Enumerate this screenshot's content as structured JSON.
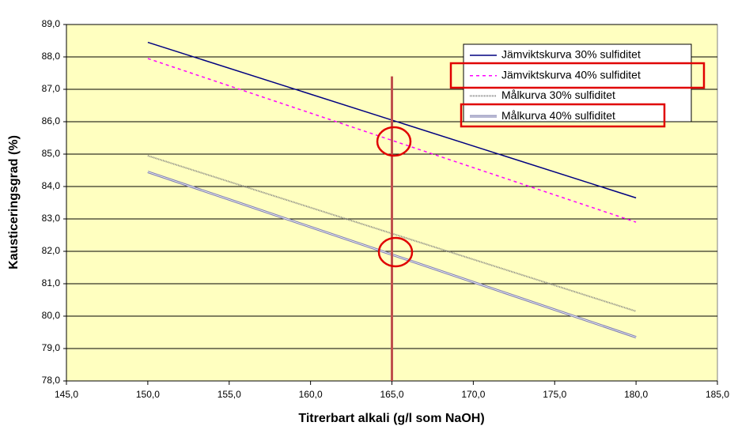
{
  "chart_data": {
    "type": "line",
    "x_label": "Titrerbart alkali (g/l som NaOH)",
    "y_label": "Kausticeringsgrad (%)",
    "x": [
      150,
      180
    ],
    "series": [
      {
        "name": "Jämviktskurva 30% sulfiditet",
        "color": "#000080",
        "style": "solid",
        "values": [
          88.45,
          83.65
        ]
      },
      {
        "name": "Jämviktskurva 40% sulfiditet",
        "color": "#ff00ff",
        "style": "dashed",
        "values": [
          87.95,
          82.9
        ]
      },
      {
        "name": "Målkurva 30% sulfiditet",
        "color": "#808080",
        "style": "dotted",
        "values": [
          84.95,
          80.15
        ]
      },
      {
        "name": "Målkurva 40% sulfiditet",
        "color": "#8080b0",
        "style": "double",
        "values": [
          84.45,
          79.35
        ]
      }
    ],
    "reference_line": {
      "x": 165,
      "y_top": 87.4,
      "color": "#c0504d"
    },
    "xlim": [
      145,
      185
    ],
    "xticks": [
      {
        "value": 145,
        "label": "145,0"
      },
      {
        "value": 150,
        "label": "150,0"
      },
      {
        "value": 155,
        "label": "155,0"
      },
      {
        "value": 160,
        "label": "160,0"
      },
      {
        "value": 165,
        "label": "165,0"
      },
      {
        "value": 170,
        "label": "170,0"
      },
      {
        "value": 175,
        "label": "175,0"
      },
      {
        "value": 180,
        "label": "180,0"
      },
      {
        "value": 185,
        "label": "185,0"
      }
    ],
    "ylim": [
      78,
      89
    ],
    "yticks": [
      {
        "value": 78,
        "label": "78,0"
      },
      {
        "value": 79,
        "label": "79,0"
      },
      {
        "value": 80,
        "label": "80,0"
      },
      {
        "value": 81,
        "label": "81,0"
      },
      {
        "value": 82,
        "label": "82,0"
      },
      {
        "value": 83,
        "label": "83,0"
      },
      {
        "value": 84,
        "label": "84,0"
      },
      {
        "value": 85,
        "label": "85,0"
      },
      {
        "value": 86,
        "label": "86,0"
      },
      {
        "value": 87,
        "label": "87,0"
      },
      {
        "value": 88,
        "label": "88,0"
      },
      {
        "value": 89,
        "label": "89,0"
      }
    ],
    "grid": true,
    "background": "#ffffc0",
    "legend": "upper right"
  }
}
